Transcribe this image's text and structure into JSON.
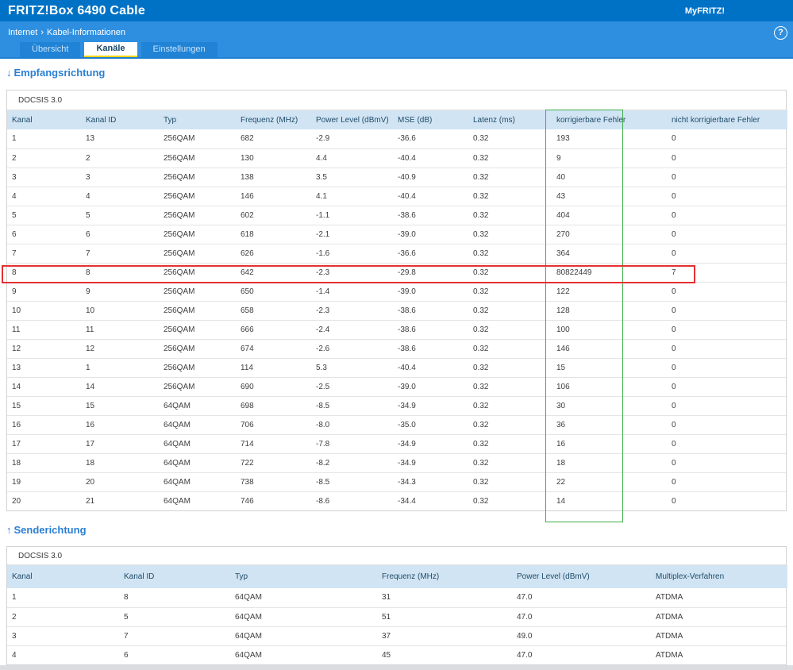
{
  "header": {
    "title": "FRITZ!Box 6490 Cable",
    "myfritz_label": "MyFRITZ!"
  },
  "breadcrumb": {
    "section": "Internet",
    "separator": "›",
    "page": "Kabel-Informationen"
  },
  "help_icon": "?",
  "tabs": [
    {
      "label": "Übersicht",
      "active": false
    },
    {
      "label": "Kanäle",
      "active": true
    },
    {
      "label": "Einstellungen",
      "active": false
    }
  ],
  "downstream": {
    "arrow": "↓",
    "heading": "Empfangsrichtung",
    "subtitle": "DOCSIS 3.0",
    "columns": [
      "Kanal",
      "Kanal ID",
      "Typ",
      "Frequenz (MHz)",
      "Power Level (dBmV)",
      "MSE (dB)",
      "Latenz (ms)",
      "korrigierbare Fehler",
      "nicht korrigierbare Fehler"
    ],
    "rows": [
      [
        "1",
        "13",
        "256QAM",
        "682",
        "-2.9",
        "-36.6",
        "0.32",
        "193",
        "0"
      ],
      [
        "2",
        "2",
        "256QAM",
        "130",
        "4.4",
        "-40.4",
        "0.32",
        "9",
        "0"
      ],
      [
        "3",
        "3",
        "256QAM",
        "138",
        "3.5",
        "-40.9",
        "0.32",
        "40",
        "0"
      ],
      [
        "4",
        "4",
        "256QAM",
        "146",
        "4.1",
        "-40.4",
        "0.32",
        "43",
        "0"
      ],
      [
        "5",
        "5",
        "256QAM",
        "602",
        "-1.1",
        "-38.6",
        "0.32",
        "404",
        "0"
      ],
      [
        "6",
        "6",
        "256QAM",
        "618",
        "-2.1",
        "-39.0",
        "0.32",
        "270",
        "0"
      ],
      [
        "7",
        "7",
        "256QAM",
        "626",
        "-1.6",
        "-36.6",
        "0.32",
        "364",
        "0"
      ],
      [
        "8",
        "8",
        "256QAM",
        "642",
        "-2.3",
        "-29.8",
        "0.32",
        "80822449",
        "7"
      ],
      [
        "9",
        "9",
        "256QAM",
        "650",
        "-1.4",
        "-39.0",
        "0.32",
        "122",
        "0"
      ],
      [
        "10",
        "10",
        "256QAM",
        "658",
        "-2.3",
        "-38.6",
        "0.32",
        "128",
        "0"
      ],
      [
        "11",
        "11",
        "256QAM",
        "666",
        "-2.4",
        "-38.6",
        "0.32",
        "100",
        "0"
      ],
      [
        "12",
        "12",
        "256QAM",
        "674",
        "-2.6",
        "-38.6",
        "0.32",
        "146",
        "0"
      ],
      [
        "13",
        "1",
        "256QAM",
        "114",
        "5.3",
        "-40.4",
        "0.32",
        "15",
        "0"
      ],
      [
        "14",
        "14",
        "256QAM",
        "690",
        "-2.5",
        "-39.0",
        "0.32",
        "106",
        "0"
      ],
      [
        "15",
        "15",
        "64QAM",
        "698",
        "-8.5",
        "-34.9",
        "0.32",
        "30",
        "0"
      ],
      [
        "16",
        "16",
        "64QAM",
        "706",
        "-8.0",
        "-35.0",
        "0.32",
        "36",
        "0"
      ],
      [
        "17",
        "17",
        "64QAM",
        "714",
        "-7.8",
        "-34.9",
        "0.32",
        "16",
        "0"
      ],
      [
        "18",
        "18",
        "64QAM",
        "722",
        "-8.2",
        "-34.9",
        "0.32",
        "18",
        "0"
      ],
      [
        "19",
        "20",
        "64QAM",
        "738",
        "-8.5",
        "-34.3",
        "0.32",
        "22",
        "0"
      ],
      [
        "20",
        "21",
        "64QAM",
        "746",
        "-8.6",
        "-34.4",
        "0.32",
        "14",
        "0"
      ]
    ]
  },
  "upstream": {
    "arrow": "↑",
    "heading": "Senderichtung",
    "subtitle": "DOCSIS 3.0",
    "columns": [
      "Kanal",
      "Kanal ID",
      "Typ",
      "Frequenz (MHz)",
      "Power Level (dBmV)",
      "Multiplex-Verfahren"
    ],
    "rows": [
      [
        "1",
        "8",
        "64QAM",
        "31",
        "47.0",
        "ATDMA"
      ],
      [
        "2",
        "5",
        "64QAM",
        "51",
        "47.0",
        "ATDMA"
      ],
      [
        "3",
        "7",
        "64QAM",
        "37",
        "49.0",
        "ATDMA"
      ],
      [
        "4",
        "6",
        "64QAM",
        "45",
        "47.0",
        "ATDMA"
      ]
    ]
  },
  "annotations": {
    "highlighted_column": "korrigierbare Fehler",
    "highlighted_column_color": "#3fae49",
    "highlighted_row_kanal": "8",
    "highlighted_row_color": "#e53030"
  },
  "colors": {
    "topbar": "#0072c6",
    "navbar": "#2e8fe0",
    "active_tab_underline": "#ffd500",
    "table_header_bg": "#d1e4f4",
    "heading_blue": "#2b7fd4"
  }
}
